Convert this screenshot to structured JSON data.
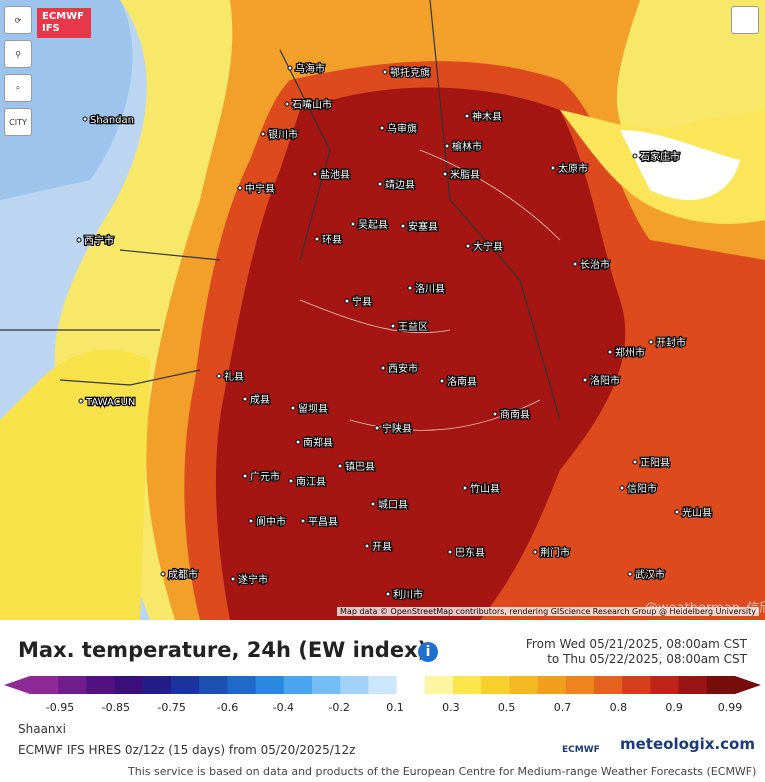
{
  "toolbar": {
    "logo_line1": "ECMWF",
    "logo_line2": "IFS",
    "city_button": "CITY"
  },
  "map": {
    "attribution": "Map data © OpenStreetMap contributors, rendering GIScience Research Group @ Heidelberg University",
    "labels": [
      "Shandan",
      "乌海市",
      "鄂托克旗",
      "石嘴山市",
      "乌审旗",
      "银川市",
      "神木县",
      "榆林市",
      "盐池县",
      "靖边县",
      "米脂县",
      "太原市",
      "中宁县",
      "吴起县",
      "安塞县",
      "大宁县",
      "石家庄市",
      "环县",
      "宁县",
      "洛川县",
      "长治市",
      "王益区",
      "西安市",
      "郑州市",
      "开封市",
      "洛南县",
      "商南县",
      "留坝县",
      "宁陕县",
      "南郑县",
      "镇巴县",
      "竹山县",
      "广元市",
      "南江县",
      "城口县",
      "开县",
      "巴东县",
      "利川市",
      "武汉市",
      "荆门市",
      "信阳市",
      "正阳县",
      "光山县",
      "成都市",
      "阆中市",
      "平昌县",
      "遂宁市",
      "礼县",
      "成县",
      "TAWACUN",
      "西宁市",
      "洛阳市"
    ],
    "watermark": "@weatherman_信欣"
  },
  "legend": {
    "title": "Max. temperature, 24h (EW index)",
    "from": "From Wed 05/21/2025, 08:00am CST",
    "to": "to Thu 05/22/2025, 08:00am CST",
    "ticks": [
      -0.95,
      -0.85,
      -0.75,
      -0.6,
      -0.4,
      -0.2,
      0.1,
      0.3,
      0.5,
      0.7,
      0.8,
      0.9,
      0.99
    ],
    "colors": [
      "#8e2a98",
      "#6f1c8c",
      "#531282",
      "#3a0f7a",
      "#241c88",
      "#1b339e",
      "#1d4fb3",
      "#2069c8",
      "#2b88e0",
      "#4ba4ee",
      "#74bdf4",
      "#a3d2f8",
      "#cce6fb",
      "#ffffff",
      "#fdf5a0",
      "#fbe64c",
      "#f7d02c",
      "#f5b922",
      "#f29f1e",
      "#ee831f",
      "#e6601e",
      "#d63d1c",
      "#bf231a",
      "#9a1414",
      "#760c0c"
    ]
  },
  "footer": {
    "region": "Shaanxi",
    "model": "ECMWF IFS HRES 0z/12z (15 days) from 05/20/2025/12z",
    "ecmwf": "ECMWF",
    "brand": "meteologix.com",
    "notice": "This service is based on data and products of the European Centre for Medium-range Weather Forecasts (ECMWF)"
  }
}
